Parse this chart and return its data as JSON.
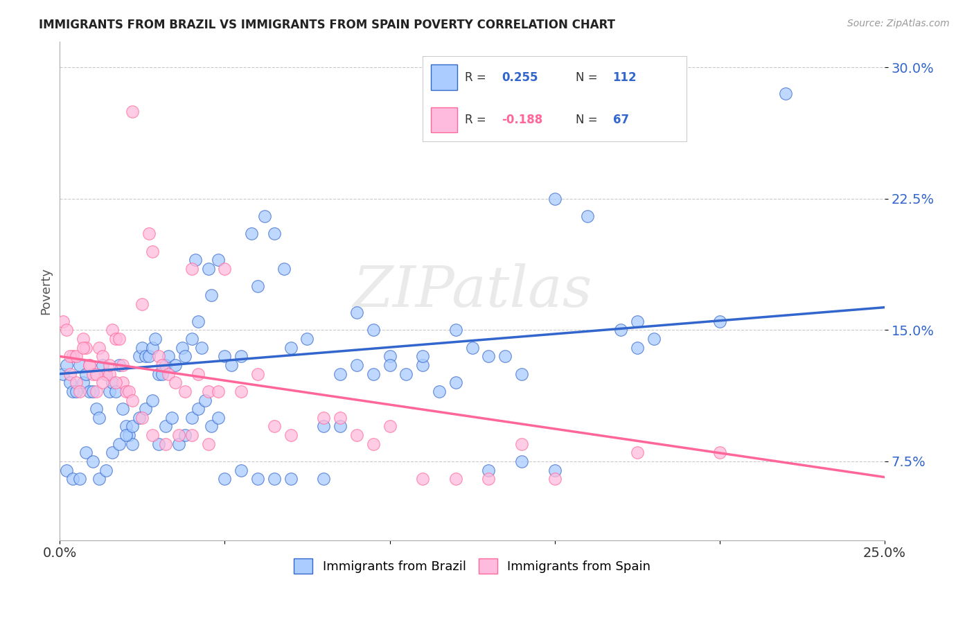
{
  "title": "IMMIGRANTS FROM BRAZIL VS IMMIGRANTS FROM SPAIN POVERTY CORRELATION CHART",
  "source": "Source: ZipAtlas.com",
  "ylabel": "Poverty",
  "xmin": 0.0,
  "xmax": 0.25,
  "ymin": 0.03,
  "ymax": 0.315,
  "yticks": [
    0.075,
    0.15,
    0.225,
    0.3
  ],
  "ytick_labels": [
    "7.5%",
    "15.0%",
    "22.5%",
    "30.0%"
  ],
  "xticks": [
    0.0,
    0.05,
    0.1,
    0.15,
    0.2,
    0.25
  ],
  "brazil_color": "#aaccff",
  "spain_color": "#ffbbdd",
  "brazil_line_color": "#3366cc",
  "spain_line_color": "#ff6699",
  "brazil_R": 0.255,
  "brazil_N": 112,
  "spain_R": -0.188,
  "spain_N": 67,
  "watermark": "ZIPatlas",
  "background_color": "#ffffff",
  "grid_color": "#bbbbbb",
  "brazil_trend_x0": 0.0,
  "brazil_trend_y0": 0.125,
  "brazil_trend_x1": 0.25,
  "brazil_trend_y1": 0.163,
  "spain_trend_x0": 0.0,
  "spain_trend_y0": 0.135,
  "spain_trend_x1": 0.25,
  "spain_trend_y1": 0.066,
  "brazil_x": [
    0.001,
    0.002,
    0.003,
    0.004,
    0.005,
    0.006,
    0.007,
    0.008,
    0.009,
    0.01,
    0.011,
    0.012,
    0.013,
    0.014,
    0.015,
    0.016,
    0.017,
    0.018,
    0.019,
    0.02,
    0.021,
    0.022,
    0.024,
    0.025,
    0.026,
    0.027,
    0.028,
    0.029,
    0.03,
    0.031,
    0.032,
    0.033,
    0.035,
    0.037,
    0.038,
    0.04,
    0.041,
    0.042,
    0.043,
    0.045,
    0.046,
    0.048,
    0.05,
    0.052,
    0.055,
    0.058,
    0.06,
    0.062,
    0.065,
    0.068,
    0.07,
    0.075,
    0.08,
    0.085,
    0.09,
    0.095,
    0.1,
    0.105,
    0.11,
    0.115,
    0.12,
    0.125,
    0.13,
    0.135,
    0.14,
    0.15,
    0.16,
    0.17,
    0.175,
    0.18,
    0.002,
    0.004,
    0.006,
    0.008,
    0.01,
    0.012,
    0.014,
    0.016,
    0.018,
    0.02,
    0.022,
    0.024,
    0.026,
    0.028,
    0.03,
    0.032,
    0.034,
    0.036,
    0.038,
    0.04,
    0.042,
    0.044,
    0.046,
    0.048,
    0.05,
    0.055,
    0.06,
    0.065,
    0.07,
    0.08,
    0.085,
    0.09,
    0.095,
    0.1,
    0.11,
    0.12,
    0.13,
    0.14,
    0.15,
    0.175,
    0.2,
    0.22
  ],
  "brazil_y": [
    0.125,
    0.13,
    0.12,
    0.115,
    0.115,
    0.13,
    0.12,
    0.125,
    0.115,
    0.115,
    0.105,
    0.1,
    0.13,
    0.125,
    0.115,
    0.12,
    0.115,
    0.13,
    0.105,
    0.095,
    0.09,
    0.085,
    0.135,
    0.14,
    0.135,
    0.135,
    0.14,
    0.145,
    0.125,
    0.125,
    0.13,
    0.135,
    0.13,
    0.14,
    0.135,
    0.145,
    0.19,
    0.155,
    0.14,
    0.185,
    0.17,
    0.19,
    0.135,
    0.13,
    0.135,
    0.205,
    0.175,
    0.215,
    0.205,
    0.185,
    0.14,
    0.145,
    0.095,
    0.095,
    0.13,
    0.15,
    0.135,
    0.125,
    0.13,
    0.115,
    0.12,
    0.14,
    0.135,
    0.135,
    0.125,
    0.225,
    0.215,
    0.15,
    0.14,
    0.145,
    0.07,
    0.065,
    0.065,
    0.08,
    0.075,
    0.065,
    0.07,
    0.08,
    0.085,
    0.09,
    0.095,
    0.1,
    0.105,
    0.11,
    0.085,
    0.095,
    0.1,
    0.085,
    0.09,
    0.1,
    0.105,
    0.11,
    0.095,
    0.1,
    0.065,
    0.07,
    0.065,
    0.065,
    0.065,
    0.065,
    0.125,
    0.16,
    0.125,
    0.13,
    0.135,
    0.15,
    0.07,
    0.075,
    0.07,
    0.155,
    0.155,
    0.285
  ],
  "spain_x": [
    0.001,
    0.002,
    0.003,
    0.004,
    0.005,
    0.006,
    0.007,
    0.008,
    0.009,
    0.01,
    0.011,
    0.012,
    0.013,
    0.014,
    0.015,
    0.016,
    0.017,
    0.018,
    0.019,
    0.02,
    0.021,
    0.022,
    0.025,
    0.027,
    0.028,
    0.03,
    0.031,
    0.033,
    0.035,
    0.038,
    0.04,
    0.042,
    0.045,
    0.048,
    0.05,
    0.055,
    0.06,
    0.065,
    0.07,
    0.08,
    0.085,
    0.09,
    0.095,
    0.1,
    0.11,
    0.12,
    0.13,
    0.14,
    0.15,
    0.175,
    0.003,
    0.005,
    0.007,
    0.009,
    0.011,
    0.013,
    0.015,
    0.017,
    0.019,
    0.022,
    0.025,
    0.028,
    0.032,
    0.036,
    0.04,
    0.045,
    0.2
  ],
  "spain_y": [
    0.155,
    0.15,
    0.125,
    0.135,
    0.12,
    0.115,
    0.145,
    0.14,
    0.13,
    0.125,
    0.115,
    0.14,
    0.135,
    0.125,
    0.125,
    0.15,
    0.145,
    0.145,
    0.12,
    0.115,
    0.115,
    0.275,
    0.165,
    0.205,
    0.195,
    0.135,
    0.13,
    0.125,
    0.12,
    0.115,
    0.185,
    0.125,
    0.115,
    0.115,
    0.185,
    0.115,
    0.125,
    0.095,
    0.09,
    0.1,
    0.1,
    0.09,
    0.085,
    0.095,
    0.065,
    0.065,
    0.065,
    0.085,
    0.065,
    0.08,
    0.135,
    0.135,
    0.14,
    0.13,
    0.125,
    0.12,
    0.13,
    0.12,
    0.13,
    0.11,
    0.1,
    0.09,
    0.085,
    0.09,
    0.09,
    0.085,
    0.08
  ]
}
